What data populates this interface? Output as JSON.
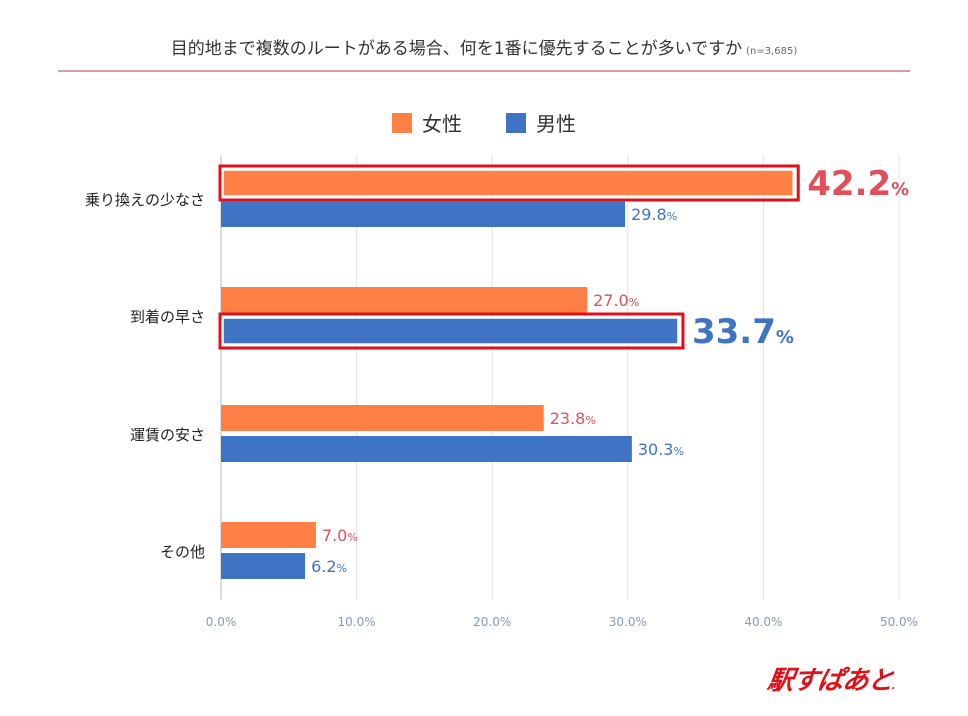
{
  "title": "目的地まで複数のルートがある場合、何を1番に優先することが多いですか",
  "sample_size": "(n=3,685)",
  "logo_text": "駅すぱあと",
  "chart_data": {
    "type": "bar",
    "orientation": "horizontal",
    "categories": [
      "乗り換えの少なさ",
      "到着の早さ",
      "運賃の安さ",
      "その他"
    ],
    "series": [
      {
        "name": "女性",
        "color": "#ff7f45",
        "label_color": "#e0505a",
        "values": [
          42.2,
          27.0,
          23.8,
          7.0
        ]
      },
      {
        "name": "男性",
        "color": "#3f73c4",
        "label_color": "#3f73c4",
        "values": [
          29.8,
          33.7,
          30.3,
          6.2
        ]
      }
    ],
    "xlim": [
      0,
      50
    ],
    "xticks": [
      "0.0%",
      "10.0%",
      "20.0%",
      "30.0%",
      "40.0%",
      "50.0%"
    ],
    "grid": true,
    "legend": "top-center",
    "highlighted": [
      {
        "series": 0,
        "category": 0
      },
      {
        "series": 1,
        "category": 1
      }
    ],
    "highlight_color": "#e0101a"
  }
}
